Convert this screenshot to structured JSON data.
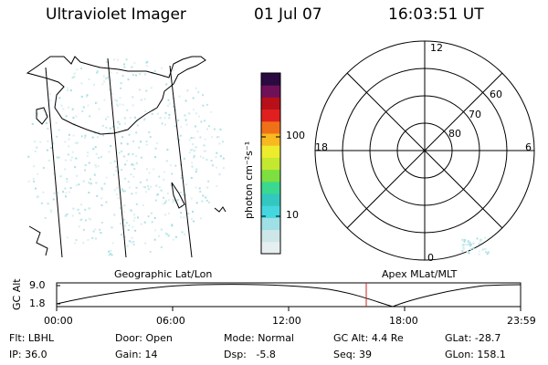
{
  "header": {
    "instrument": "Ultraviolet Imager",
    "date": "01 Jul 07",
    "time": "16:03:51 UT"
  },
  "colorbar": {
    "label": "photon cm⁻²s⁻¹",
    "ticks": [
      "100",
      "10"
    ],
    "colors": [
      "#e6eef0",
      "#cde6e8",
      "#9fdfe6",
      "#44d7e0",
      "#32c8c0",
      "#3bd890",
      "#7de040",
      "#c4e830",
      "#ecec2c",
      "#f8b820",
      "#f07018",
      "#e02020",
      "#b81018",
      "#701058",
      "#2a0a40"
    ]
  },
  "polar_plot": {
    "mlt_labels": [
      "12",
      "18",
      "6",
      "0"
    ],
    "lat_labels": [
      "60",
      "70",
      "80"
    ]
  },
  "map_panel": {
    "caption_left": "Geographic Lat/Lon",
    "caption_right": "Apex MLat/MLT"
  },
  "altitude_plot": {
    "ylabel": "GC Alt",
    "yticks": [
      "9.0",
      "1.8"
    ],
    "xticks": [
      "00:00",
      "06:00",
      "12:00",
      "18:00",
      "23:59"
    ],
    "current_time_color": "#cc2222"
  },
  "info": {
    "flt_label": "Flt:",
    "flt_value": "LBHL",
    "ip_label": "IP:",
    "ip_value": "36.0",
    "door_label": "Door:",
    "door_value": "Open",
    "gain_label": "Gain:",
    "gain_value": "14",
    "mode_label": "Mode:",
    "mode_value": "Normal",
    "dsp_label": "Dsp:",
    "dsp_value": "-5.8",
    "gcalt_label": "GC Alt:",
    "gcalt_value": "4.4 Re",
    "seq_label": "Seq:",
    "seq_value": "39",
    "glat_label": "GLat:",
    "glat_value": "-28.7",
    "glon_label": "GLon:",
    "glon_value": "158.1"
  }
}
